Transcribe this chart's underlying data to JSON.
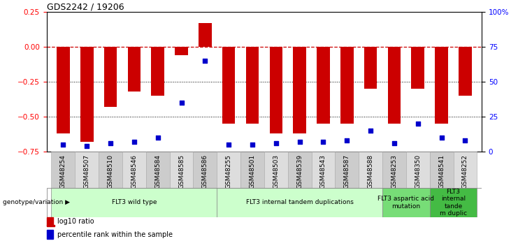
{
  "title": "GDS2242 / 19206",
  "samples": [
    "GSM48254",
    "GSM48507",
    "GSM48510",
    "GSM48546",
    "GSM48584",
    "GSM48585",
    "GSM48586",
    "GSM48255",
    "GSM48501",
    "GSM48503",
    "GSM48539",
    "GSM48543",
    "GSM48587",
    "GSM48588",
    "GSM48253",
    "GSM48350",
    "GSM48541",
    "GSM48252"
  ],
  "log10_ratio": [
    -0.62,
    -0.68,
    -0.43,
    -0.32,
    -0.35,
    -0.06,
    0.17,
    -0.55,
    -0.55,
    -0.62,
    -0.62,
    -0.55,
    -0.55,
    -0.3,
    -0.55,
    -0.3,
    -0.55,
    -0.35
  ],
  "percentile_rank": [
    5,
    4,
    6,
    7,
    10,
    35,
    65,
    5,
    5,
    6,
    7,
    7,
    8,
    15,
    6,
    20,
    10,
    8
  ],
  "bar_color": "#cc0000",
  "dot_color": "#0000cc",
  "ylim": [
    -0.75,
    0.25
  ],
  "y2lim": [
    0,
    100
  ],
  "yticks": [
    -0.75,
    -0.5,
    -0.25,
    0,
    0.25
  ],
  "y2ticks": [
    0,
    25,
    50,
    75,
    100
  ],
  "hline_y": 0,
  "dotted_lines": [
    -0.25,
    -0.5
  ],
  "groups": [
    {
      "label": "FLT3 wild type",
      "start": 0,
      "end": 6,
      "color": "#ccffcc"
    },
    {
      "label": "FLT3 internal tandem duplications",
      "start": 7,
      "end": 13,
      "color": "#ccffcc"
    },
    {
      "label": "FLT3 aspartic acid\nmutation",
      "start": 14,
      "end": 15,
      "color": "#77dd77"
    },
    {
      "label": "FLT3\ninternal\ntande\nm duplic",
      "start": 16,
      "end": 17,
      "color": "#44bb44"
    }
  ],
  "legend_items": [
    {
      "label": "log10 ratio",
      "color": "#cc0000"
    },
    {
      "label": "percentile rank within the sample",
      "color": "#0000cc"
    }
  ],
  "genotype_label": "genotype/variation"
}
